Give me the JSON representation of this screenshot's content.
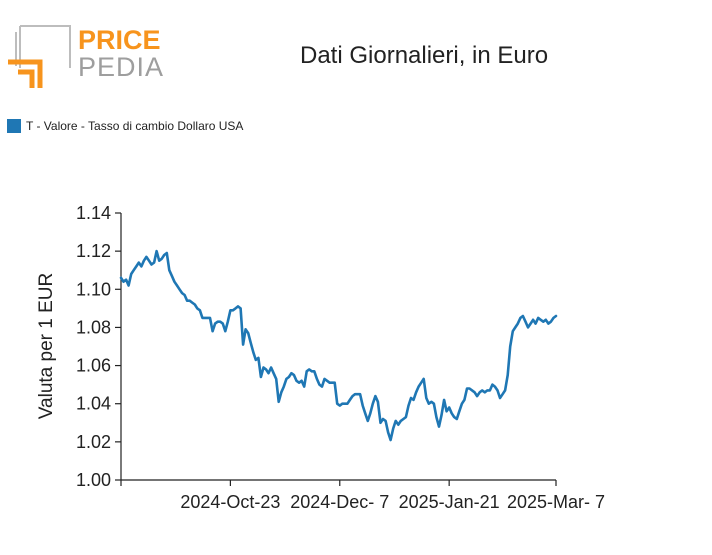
{
  "logo": {
    "word1": "PRICE",
    "word2": "PEDIA",
    "colors": {
      "orange": "#f7941d",
      "gray": "#9e9e9e"
    }
  },
  "chart_data": {
    "type": "line",
    "title": "Dati Giornalieri, in Euro",
    "xlabel": "",
    "ylabel": "Valuta per 1 EUR",
    "legend": {
      "placement": "top-left",
      "entries": [
        "T - Valore - Tasso di cambio Dollaro USA"
      ]
    },
    "ylim": [
      1.0,
      1.14
    ],
    "yticks": [
      1.0,
      1.02,
      1.04,
      1.06,
      1.08,
      1.1,
      1.12,
      1.14
    ],
    "ytick_labels": [
      "1.00",
      "1.02",
      "1.04",
      "1.06",
      "1.08",
      "1.10",
      "1.12",
      "1.14"
    ],
    "xlim": [
      0,
      171
    ],
    "xticks": [
      43,
      86,
      129,
      171
    ],
    "xtick_labels": [
      "2024-Oct-23",
      "2024-Dec- 7",
      "2025-Jan-21",
      "2025-Mar- 7"
    ],
    "grid": false,
    "series": [
      {
        "name": "T - Valore - Tasso di cambio Dollaro USA",
        "color": "#1f77b4",
        "x": [
          0,
          1,
          2,
          3,
          4,
          5,
          6,
          7,
          8,
          9,
          10,
          11,
          12,
          13,
          14,
          15,
          16,
          17,
          18,
          19,
          20,
          21,
          22,
          23,
          24,
          25,
          26,
          27,
          28,
          29,
          30,
          31,
          32,
          33,
          34,
          35,
          36,
          37,
          38,
          39,
          40,
          41,
          42,
          43,
          44,
          45,
          46,
          47,
          48,
          49,
          50,
          51,
          52,
          53,
          54,
          55,
          56,
          57,
          58,
          59,
          60,
          61,
          62,
          63,
          64,
          65,
          66,
          67,
          68,
          69,
          70,
          71,
          72,
          73,
          74,
          75,
          76,
          77,
          78,
          79,
          80,
          81,
          82,
          83,
          84,
          85,
          86,
          87,
          88,
          89,
          90,
          91,
          92,
          93,
          94,
          95,
          96,
          97,
          98,
          99,
          100,
          101,
          102,
          103,
          104,
          105,
          106,
          107,
          108,
          109,
          110,
          111,
          112,
          113,
          114,
          115,
          116,
          117,
          118,
          119,
          120,
          121,
          122,
          123,
          124,
          125,
          126,
          127,
          128,
          129,
          130,
          131,
          132,
          133,
          134,
          135,
          136,
          137,
          138,
          139,
          140,
          141,
          142,
          143,
          144,
          145,
          146,
          147,
          148,
          149,
          150,
          151,
          152,
          153,
          154,
          155,
          156,
          157,
          158,
          159,
          160,
          161,
          162,
          163,
          164,
          165,
          166,
          167,
          168,
          169,
          170,
          171
        ],
        "values": [
          1.106,
          1.104,
          1.105,
          1.102,
          1.108,
          1.11,
          1.112,
          1.114,
          1.112,
          1.115,
          1.117,
          1.115,
          1.113,
          1.114,
          1.12,
          1.115,
          1.116,
          1.118,
          1.119,
          1.11,
          1.107,
          1.104,
          1.102,
          1.1,
          1.098,
          1.097,
          1.094,
          1.094,
          1.093,
          1.092,
          1.09,
          1.089,
          1.085,
          1.085,
          1.085,
          1.085,
          1.078,
          1.082,
          1.083,
          1.083,
          1.082,
          1.078,
          1.083,
          1.089,
          1.089,
          1.09,
          1.091,
          1.09,
          1.071,
          1.079,
          1.077,
          1.072,
          1.067,
          1.063,
          1.064,
          1.054,
          1.059,
          1.058,
          1.056,
          1.059,
          1.056,
          1.053,
          1.041,
          1.046,
          1.049,
          1.053,
          1.054,
          1.056,
          1.055,
          1.052,
          1.051,
          1.052,
          1.049,
          1.057,
          1.058,
          1.057,
          1.057,
          1.053,
          1.05,
          1.049,
          1.053,
          1.052,
          1.051,
          1.051,
          1.051,
          1.04,
          1.039,
          1.04,
          1.04,
          1.04,
          1.042,
          1.044,
          1.045,
          1.045,
          1.045,
          1.039,
          1.035,
          1.031,
          1.035,
          1.04,
          1.044,
          1.041,
          1.03,
          1.032,
          1.031,
          1.025,
          1.021,
          1.027,
          1.031,
          1.029,
          1.031,
          1.032,
          1.033,
          1.039,
          1.043,
          1.042,
          1.046,
          1.049,
          1.051,
          1.053,
          1.043,
          1.04,
          1.041,
          1.04,
          1.033,
          1.028,
          1.034,
          1.042,
          1.036,
          1.038,
          1.035,
          1.033,
          1.032,
          1.036,
          1.04,
          1.042,
          1.048,
          1.048,
          1.047,
          1.046,
          1.044,
          1.046,
          1.047,
          1.046,
          1.047,
          1.047,
          1.05,
          1.049,
          1.047,
          1.043,
          1.045,
          1.047,
          1.055,
          1.07,
          1.078,
          1.08,
          1.082,
          1.085,
          1.086,
          1.083,
          1.08,
          1.082,
          1.084,
          1.082,
          1.085,
          1.084,
          1.083,
          1.084,
          1.082,
          1.083,
          1.085,
          1.086
        ]
      }
    ]
  }
}
